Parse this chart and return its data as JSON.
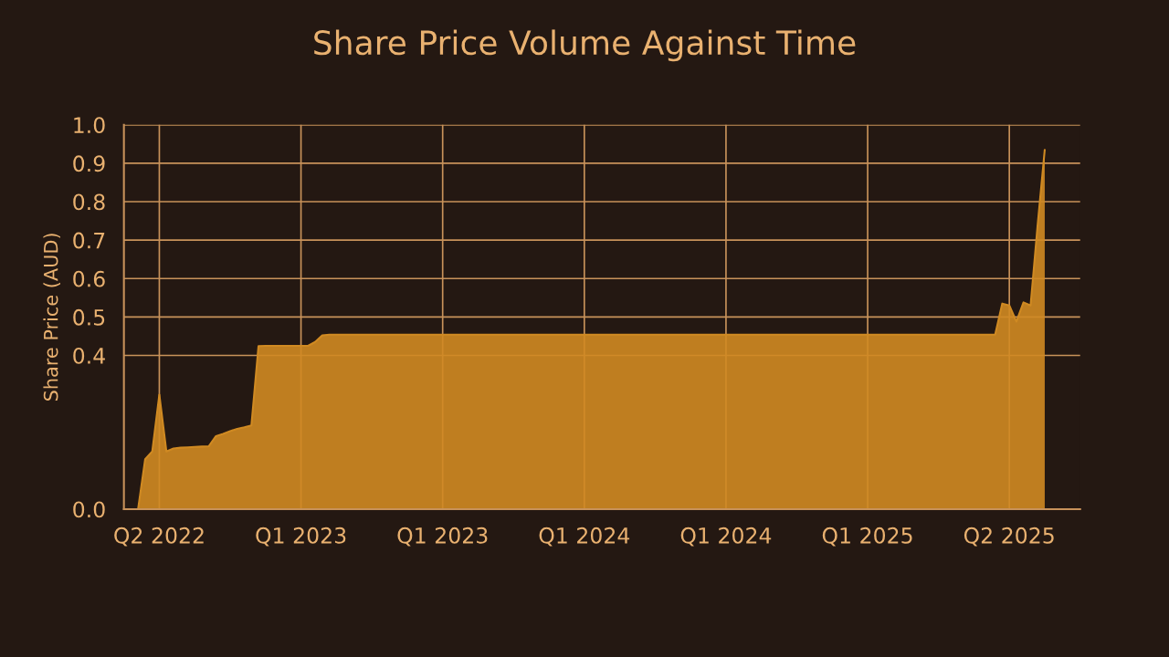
{
  "chart_data": {
    "type": "area",
    "title": "Share Price Volume Against Time",
    "ylabel": "Share Price (AUD)",
    "categories": [
      null,
      null,
      null,
      "Q2 2022",
      null,
      null,
      null,
      null,
      null,
      null,
      null,
      null,
      null,
      null,
      null,
      null,
      null,
      null,
      null,
      null,
      null,
      null,
      null,
      "Q1 2023",
      null,
      null,
      null,
      null,
      null,
      null,
      null,
      null,
      null,
      null,
      null,
      null,
      null,
      null,
      null,
      null,
      null,
      null,
      null,
      "Q1 2023",
      null,
      null,
      null,
      null,
      null,
      null,
      null,
      null,
      null,
      null,
      null,
      null,
      null,
      null,
      null,
      null,
      null,
      null,
      null,
      "Q1 2024",
      null,
      null,
      null,
      null,
      null,
      null,
      null,
      null,
      null,
      null,
      null,
      null,
      null,
      null,
      null,
      null,
      null,
      null,
      null,
      "Q1 2024",
      null,
      null,
      null,
      null,
      null,
      null,
      null,
      null,
      null,
      null,
      null,
      null,
      null,
      null,
      null,
      null,
      null,
      null,
      null,
      "Q1 2025",
      null,
      null,
      null,
      null,
      null,
      null,
      null,
      null,
      null,
      null,
      null,
      null,
      null,
      null,
      null,
      null,
      null,
      null,
      null,
      "Q2 2025",
      null,
      null,
      null,
      null,
      null
    ],
    "series": [
      {
        "color": "#d08a22",
        "values": [
          0,
          0.13,
          0.15,
          0.298,
          0.15,
          0.158,
          0.16,
          0.161,
          0.162,
          0.163,
          0.164,
          0.19,
          0.196,
          0.203,
          0.209,
          0.213,
          0.218,
          0.424,
          0.425,
          0.425,
          0.425,
          0.425,
          0.425,
          0.425,
          0.425,
          0.435,
          0.452,
          0.454,
          0.454,
          0.454,
          0.454,
          0.454,
          0.454,
          0.454,
          0.454,
          0.454,
          0.454,
          0.454,
          0.454,
          0.454,
          0.454,
          0.454,
          0.454,
          0.454,
          0.454,
          0.454,
          0.454,
          0.454,
          0.454,
          0.454,
          0.454,
          0.454,
          0.454,
          0.454,
          0.454,
          0.454,
          0.454,
          0.454,
          0.454,
          0.454,
          0.454,
          0.454,
          0.454,
          0.454,
          0.454,
          0.454,
          0.454,
          0.454,
          0.454,
          0.454,
          0.454,
          0.454,
          0.454,
          0.454,
          0.454,
          0.454,
          0.454,
          0.454,
          0.454,
          0.454,
          0.454,
          0.454,
          0.454,
          0.454,
          0.454,
          0.454,
          0.454,
          0.454,
          0.454,
          0.454,
          0.454,
          0.454,
          0.454,
          0.454,
          0.454,
          0.454,
          0.454,
          0.454,
          0.454,
          0.454,
          0.454,
          0.454,
          0.454,
          0.454,
          0.454,
          0.454,
          0.454,
          0.454,
          0.454,
          0.454,
          0.454,
          0.454,
          0.454,
          0.454,
          0.454,
          0.454,
          0.454,
          0.454,
          0.454,
          0.454,
          0.454,
          0.454,
          0.535,
          0.53,
          0.488,
          0.538,
          0.53,
          0.74,
          0.935
        ]
      }
    ],
    "ylim": [
      0,
      1.0
    ],
    "yticks": [
      {
        "value": 0,
        "label": "0.0"
      },
      0.4,
      0.5,
      0.6,
      0.7,
      0.8,
      0.9,
      {
        "value": 1.0,
        "label": "1.0"
      }
    ],
    "grid": true
  }
}
